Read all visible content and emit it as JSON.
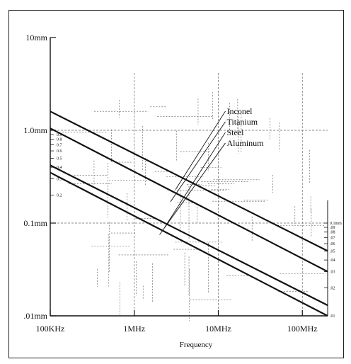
{
  "chart_data": {
    "type": "line",
    "title": "",
    "xlabel": "Frequency",
    "ylabel": "",
    "x_scale": "log",
    "y_scale": "log",
    "xlim_hz": [
      100000,
      200000000
    ],
    "ylim_mm": [
      0.01,
      10
    ],
    "x_ticks": [
      {
        "value": 100000,
        "label": "100KHz"
      },
      {
        "value": 1000000,
        "label": "1MHz"
      },
      {
        "value": 10000000,
        "label": "10MHz"
      },
      {
        "value": 100000000,
        "label": "100MHz"
      }
    ],
    "y_ticks": [
      {
        "value": 10,
        "label": "10mm"
      },
      {
        "value": 1,
        "label": "1.0mm"
      },
      {
        "value": 0.1,
        "label": "0.1mm"
      },
      {
        "value": 0.01,
        "label": ".01mm"
      }
    ],
    "y_minor_left": [
      {
        "value": 0.9,
        "label": "0.9"
      },
      {
        "value": 0.8,
        "label": "0.8"
      },
      {
        "value": 0.7,
        "label": "0.7"
      },
      {
        "value": 0.6,
        "label": "0.6"
      },
      {
        "value": 0.5,
        "label": "0.5"
      },
      {
        "value": 0.4,
        "label": "0.4"
      },
      {
        "value": 0.3,
        "label": "0.3"
      },
      {
        "value": 0.2,
        "label": "0.2"
      }
    ],
    "y_minor_right": [
      {
        "value": 0.1,
        "label": "0.1mm"
      },
      {
        "value": 0.09,
        "label": ".09"
      },
      {
        "value": 0.08,
        "label": ".08"
      },
      {
        "value": 0.07,
        "label": ".07"
      },
      {
        "value": 0.06,
        "label": ".06"
      },
      {
        "value": 0.05,
        "label": ".05"
      },
      {
        "value": 0.04,
        "label": ".04"
      },
      {
        "value": 0.03,
        "label": ".03"
      },
      {
        "value": 0.02,
        "label": ".02"
      },
      {
        "value": 0.01,
        "label": ".01"
      }
    ],
    "series": [
      {
        "name": "Inconel",
        "x": [
          100000,
          200000000
        ],
        "y": [
          1.6,
          0.05
        ]
      },
      {
        "name": "Titanium",
        "x": [
          100000,
          200000000
        ],
        "y": [
          1.05,
          0.03
        ]
      },
      {
        "name": "Steel",
        "x": [
          100000,
          200000000
        ],
        "y": [
          0.42,
          0.013
        ]
      },
      {
        "name": "Aluminum",
        "x": [
          100000,
          200000000
        ],
        "y": [
          0.35,
          0.01
        ]
      }
    ],
    "legend_labels": [
      {
        "text": "Inconel",
        "target_x": 3100000,
        "target_y": 0.23
      },
      {
        "text": "Titanium",
        "target_x": 2700000,
        "target_y": 0.17
      },
      {
        "text": "Steel",
        "target_x": 2300000,
        "target_y": 0.09
      },
      {
        "text": "Aluminum",
        "target_x": 2000000,
        "target_y": 0.075
      }
    ],
    "grid": "sparse dashed crosshair marks",
    "line_color": "#111111"
  }
}
